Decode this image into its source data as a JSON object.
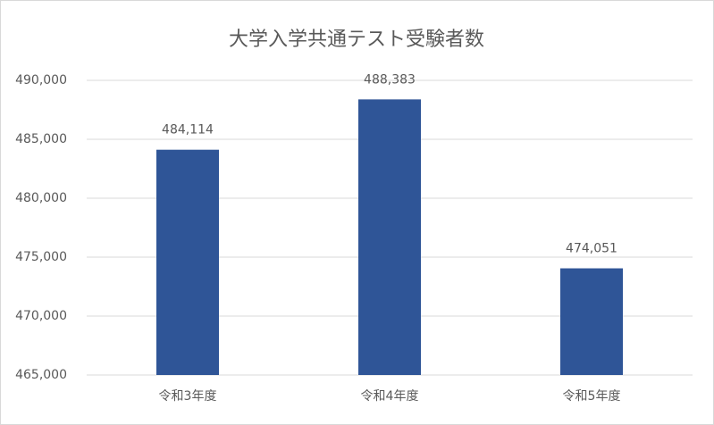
{
  "chart_data": {
    "type": "bar",
    "title": "大学入学共通テスト受験者数",
    "categories": [
      "令和3年度",
      "令和4年度",
      "令和5年度"
    ],
    "values": [
      484114,
      488383,
      474051
    ],
    "value_labels": [
      "484,114",
      "488,383",
      "474,051"
    ],
    "color": "#2f5597",
    "ylim": [
      465000,
      490000
    ],
    "yticks": [
      {
        "value": 465000,
        "label": "465,000"
      },
      {
        "value": 470000,
        "label": "470,000"
      },
      {
        "value": 475000,
        "label": "475,000"
      },
      {
        "value": 480000,
        "label": "480,000"
      },
      {
        "value": 485000,
        "label": "485,000"
      },
      {
        "value": 490000,
        "label": "490,000"
      }
    ],
    "grid": true
  }
}
